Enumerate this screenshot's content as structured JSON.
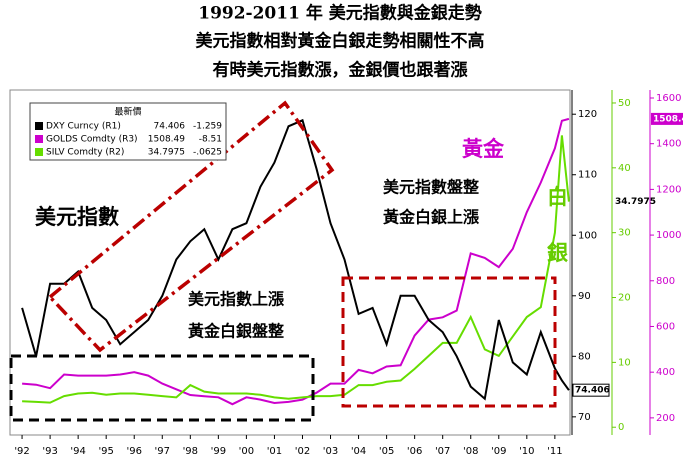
{
  "chart_data": {
    "type": "line",
    "title_lines": [
      "1992-2011 年  美元指數與金銀走勢",
      "美元指數相對黃金白銀走勢相關性不高",
      "有時美元指數漲，金銀價也跟著漲"
    ],
    "legend_header": "最新價",
    "legend_rows": [
      [
        "DXY Curncy (R1)",
        "74.406",
        "-1.259"
      ],
      [
        "GOLDS Comdty (R3)",
        "1508.49",
        "-8.51"
      ],
      [
        "SILV Comdty (R2)",
        "34.7975",
        "-.0625"
      ]
    ],
    "annotations": {
      "dxy": "美元指數",
      "up1": "美元指數上漲",
      "flat1": "黃金白銀盤整",
      "flat2": "美元指數盤整",
      "up2": "黃金白銀上漲",
      "gold": "黃金",
      "silver1": "白",
      "silver2": "銀"
    },
    "x": [
      1992,
      1992.5,
      1993,
      1993.5,
      1994,
      1994.5,
      1995,
      1995.5,
      1996,
      1996.5,
      1997,
      1997.5,
      1998,
      1998.5,
      1999,
      1999.5,
      2000,
      2000.5,
      2001,
      2001.5,
      2002,
      2002.5,
      2003,
      2003.5,
      2004,
      2004.5,
      2005,
      2005.5,
      2006,
      2006.5,
      2007,
      2007.5,
      2008,
      2008.5,
      2009,
      2009.5,
      2010,
      2010.5,
      2011,
      2011.25,
      2011.5
    ],
    "xlim": [
      1991.57,
      2011.54
    ],
    "xticks": [
      {
        "value": 1992,
        "label": "'92"
      },
      {
        "value": 1993,
        "label": "'93"
      },
      {
        "value": 1994,
        "label": "'94"
      },
      {
        "value": 1995,
        "label": "'95"
      },
      {
        "value": 1996,
        "label": "'96"
      },
      {
        "value": 1997,
        "label": "'97"
      },
      {
        "value": 1998,
        "label": "'98"
      },
      {
        "value": 1999,
        "label": "'99"
      },
      {
        "value": 2000,
        "label": "'00"
      },
      {
        "value": 2001,
        "label": "'01"
      },
      {
        "value": 2002,
        "label": "'02"
      },
      {
        "value": 2003,
        "label": "'03"
      },
      {
        "value": 2004,
        "label": "'04"
      },
      {
        "value": 2005,
        "label": "'05"
      },
      {
        "value": 2006,
        "label": "'06"
      },
      {
        "value": 2007,
        "label": "'07"
      },
      {
        "value": 2008,
        "label": "'08"
      },
      {
        "value": 2009,
        "label": "'09"
      },
      {
        "value": 2010,
        "label": "'10"
      },
      {
        "value": 2011,
        "label": "'11"
      }
    ],
    "ylim": [
      67,
      124
    ],
    "yticks": [
      70,
      80,
      90,
      100,
      110,
      120
    ],
    "y2lim": [
      -1.2,
      52
    ],
    "y2ticks": [
      0,
      10,
      20,
      30,
      40,
      50
    ],
    "y3lim": [
      125,
      1635
    ],
    "y3ticks": [
      200,
      400,
      600,
      800,
      1000,
      1200,
      1400,
      1600
    ],
    "series": [
      {
        "name": "DXY",
        "color": "#000000",
        "values": [
          88,
          80,
          92,
          92,
          94,
          88,
          86,
          82,
          84,
          86,
          90,
          96,
          99,
          101,
          96,
          101,
          102,
          108,
          112,
          118,
          119,
          111,
          102,
          96,
          87,
          88,
          82,
          90,
          90,
          86,
          84,
          80,
          75,
          73,
          86,
          79,
          77,
          84,
          78,
          76,
          74.406
        ]
      },
      {
        "name": "GOLDS",
        "color": "#cc00cc",
        "axis": "y3",
        "values": [
          350,
          345,
          330,
          390,
          385,
          385,
          385,
          390,
          400,
          385,
          350,
          325,
          300,
          295,
          290,
          260,
          290,
          280,
          265,
          270,
          280,
          310,
          350,
          350,
          410,
          395,
          425,
          430,
          560,
          630,
          640,
          670,
          920,
          900,
          860,
          940,
          1100,
          1230,
          1380,
          1500,
          1508.49
        ]
      },
      {
        "name": "SILV",
        "color": "#66dd00",
        "axis": "y2",
        "values": [
          4,
          3.9,
          3.8,
          4.8,
          5.2,
          5.3,
          5,
          5.2,
          5.2,
          5,
          4.8,
          4.6,
          6.5,
          5.5,
          5.2,
          5.2,
          5.2,
          5,
          4.6,
          4.4,
          4.6,
          4.8,
          4.8,
          5,
          6.5,
          6.5,
          7,
          7.2,
          9,
          11,
          13,
          13,
          17,
          12,
          11,
          14,
          17,
          18.5,
          30,
          45,
          34.7975
        ]
      }
    ]
  }
}
